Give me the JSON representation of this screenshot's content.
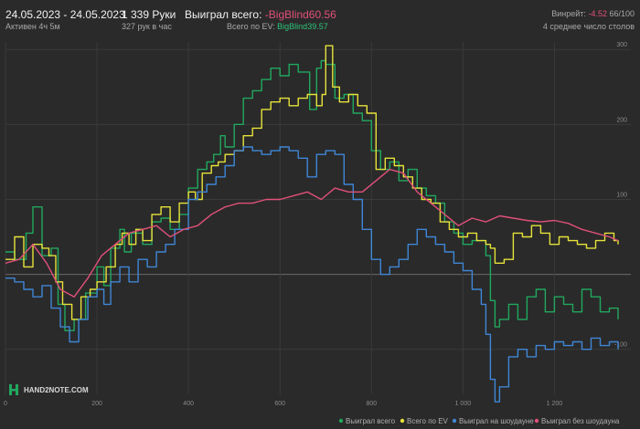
{
  "header": {
    "date_range": "24.05.2023 - 24.05.2023",
    "active": "Активен 4ч 5м",
    "hands": "1 339 Руки",
    "hands_per_hour": "327 рук в час",
    "won_label": "Выиграл всего:",
    "won_value": "-BigBlind60.56",
    "ev_label": "Всего по EV:",
    "ev_value": "BigBlind39.57",
    "winrate_label": "Винрейт:",
    "winrate_value": "-4.52",
    "winrate_of": "66/100",
    "tables": "4 среднее число столов"
  },
  "logo": {
    "text": "HAND2NOTE.COM"
  },
  "colors": {
    "background": "#2a2a2a",
    "grid": "#3a3a3a",
    "zero_line": "#6a6a6a",
    "won": "#21a85e",
    "ev": "#e6e23a",
    "showdown": "#3f86d6",
    "non_showdown": "#e0507a",
    "negative": "#e0507a",
    "positive": "#2ec37a"
  },
  "chart_data": {
    "type": "line",
    "xlim": [
      0,
      1339
    ],
    "ylim": [
      -160,
      310
    ],
    "x_ticks": [
      {
        "value": 0,
        "label": "0"
      },
      {
        "value": 200,
        "label": "200"
      },
      {
        "value": 400,
        "label": "400"
      },
      {
        "value": 600,
        "label": "600"
      },
      {
        "value": 800,
        "label": "800"
      },
      {
        "value": 1000,
        "label": "1 000"
      },
      {
        "value": 1200,
        "label": "1 200"
      }
    ],
    "y_ticks": [
      {
        "value": 300,
        "label": "300"
      },
      {
        "value": 200,
        "label": "200"
      },
      {
        "value": 100,
        "label": "100"
      },
      {
        "value": -100,
        "label": "-100"
      }
    ],
    "grid": true,
    "legend": "bottom-right",
    "series": [
      {
        "name": "Выиграл всего",
        "color": "#21a85e",
        "step": true,
        "x": [
          0,
          20,
          45,
          60,
          80,
          100,
          115,
          130,
          150,
          175,
          200,
          215,
          230,
          250,
          260,
          275,
          300,
          320,
          340,
          360,
          380,
          400,
          420,
          440,
          455,
          470,
          480,
          500,
          520,
          540,
          560,
          580,
          600,
          620,
          640,
          665,
          680,
          690,
          700,
          720,
          740,
          760,
          780,
          800,
          820,
          840,
          860,
          880,
          900,
          920,
          940,
          960,
          980,
          1000,
          1020,
          1040,
          1050,
          1060,
          1070,
          1080,
          1100,
          1120,
          1140,
          1160,
          1180,
          1200,
          1220,
          1240,
          1260,
          1280,
          1300,
          1320,
          1339
        ],
        "y": [
          30,
          20,
          55,
          90,
          25,
          35,
          -40,
          -75,
          -60,
          -25,
          10,
          -15,
          35,
          60,
          30,
          55,
          40,
          70,
          75,
          60,
          80,
          115,
          140,
          150,
          160,
          185,
          170,
          200,
          235,
          245,
          260,
          275,
          265,
          280,
          270,
          220,
          275,
          285,
          280,
          235,
          240,
          215,
          205,
          165,
          140,
          150,
          125,
          140,
          115,
          105,
          95,
          70,
          55,
          40,
          45,
          45,
          25,
          -35,
          -70,
          -60,
          -40,
          -60,
          -30,
          -20,
          -50,
          -30,
          -40,
          -50,
          -20,
          -30,
          -50,
          -45,
          -60
        ]
      },
      {
        "name": "Всего по EV",
        "color": "#e6e23a",
        "step": true,
        "x": [
          0,
          20,
          40,
          60,
          80,
          95,
          110,
          125,
          145,
          165,
          185,
          200,
          220,
          240,
          255,
          270,
          285,
          300,
          320,
          340,
          360,
          380,
          400,
          415,
          430,
          450,
          465,
          480,
          500,
          520,
          540,
          560,
          580,
          600,
          620,
          640,
          660,
          680,
          692,
          700,
          715,
          730,
          750,
          770,
          790,
          810,
          830,
          850,
          870,
          890,
          910,
          930,
          950,
          970,
          990,
          1010,
          1030,
          1050,
          1060,
          1070,
          1090,
          1110,
          1130,
          1150,
          1170,
          1190,
          1210,
          1230,
          1250,
          1270,
          1290,
          1310,
          1330,
          1339
        ],
        "y": [
          20,
          50,
          10,
          40,
          35,
          25,
          -10,
          -40,
          -60,
          -30,
          -20,
          -10,
          10,
          40,
          55,
          40,
          60,
          45,
          80,
          90,
          70,
          95,
          110,
          100,
          135,
          145,
          150,
          160,
          165,
          185,
          195,
          220,
          230,
          235,
          225,
          235,
          240,
          225,
          240,
          305,
          250,
          230,
          240,
          225,
          215,
          140,
          155,
          145,
          130,
          115,
          100,
          95,
          70,
          60,
          50,
          55,
          45,
          40,
          35,
          15,
          20,
          55,
          50,
          65,
          55,
          40,
          50,
          45,
          40,
          35,
          45,
          55,
          45,
          40
        ]
      },
      {
        "name": "Выиграл на шоудауне",
        "color": "#3f86d6",
        "step": true,
        "x": [
          0,
          20,
          40,
          60,
          80,
          100,
          120,
          140,
          160,
          180,
          200,
          215,
          230,
          250,
          270,
          290,
          310,
          330,
          350,
          370,
          400,
          420,
          440,
          460,
          480,
          500,
          520,
          540,
          560,
          580,
          600,
          620,
          640,
          660,
          680,
          700,
          720,
          740,
          760,
          780,
          800,
          820,
          840,
          860,
          880,
          900,
          920,
          940,
          960,
          980,
          1000,
          1020,
          1040,
          1050,
          1060,
          1070,
          1080,
          1100,
          1120,
          1140,
          1160,
          1180,
          1200,
          1220,
          1240,
          1260,
          1280,
          1300,
          1320,
          1339
        ],
        "y": [
          -5,
          -10,
          -20,
          -30,
          -15,
          -45,
          -70,
          -90,
          -60,
          -30,
          -20,
          -40,
          -10,
          10,
          -10,
          20,
          10,
          30,
          40,
          60,
          100,
          110,
          120,
          130,
          145,
          165,
          170,
          165,
          160,
          165,
          170,
          165,
          155,
          130,
          160,
          165,
          160,
          120,
          100,
          60,
          20,
          0,
          10,
          20,
          40,
          60,
          50,
          40,
          30,
          15,
          5,
          -20,
          -40,
          -80,
          -140,
          -170,
          -150,
          -110,
          -100,
          -110,
          -95,
          -100,
          -90,
          -95,
          -90,
          -100,
          -85,
          -95,
          -90,
          -100
        ]
      },
      {
        "name": "Выиграл без шоудауна",
        "color": "#e0507a",
        "step": false,
        "x": [
          0,
          30,
          60,
          90,
          120,
          150,
          180,
          210,
          240,
          270,
          300,
          330,
          360,
          390,
          420,
          450,
          480,
          510,
          540,
          570,
          600,
          630,
          660,
          690,
          720,
          750,
          780,
          810,
          840,
          870,
          900,
          930,
          960,
          990,
          1020,
          1050,
          1080,
          1110,
          1140,
          1170,
          1200,
          1230,
          1260,
          1290,
          1320,
          1339
        ],
        "y": [
          15,
          20,
          40,
          15,
          -20,
          -30,
          -5,
          25,
          40,
          55,
          60,
          65,
          50,
          60,
          65,
          80,
          90,
          95,
          95,
          100,
          100,
          105,
          110,
          100,
          115,
          110,
          110,
          125,
          140,
          135,
          110,
          95,
          80,
          65,
          75,
          70,
          78,
          75,
          72,
          70,
          72,
          68,
          60,
          55,
          50,
          45
        ]
      }
    ]
  }
}
